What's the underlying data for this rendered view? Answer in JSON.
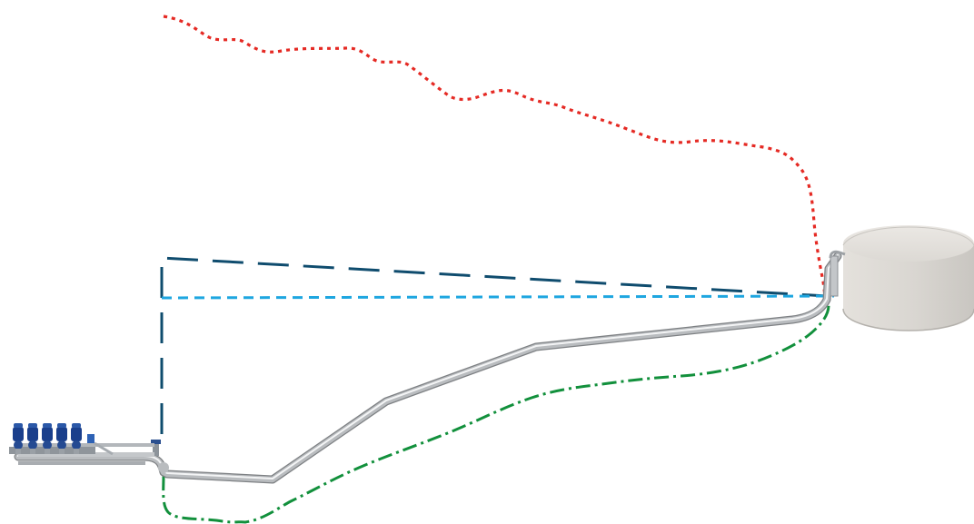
{
  "diagram": {
    "colors": {
      "red_line": "#e52a24",
      "dark_blue_line": "#0f4c6e",
      "light_blue_line": "#1ea6e0",
      "green_line": "#12903c",
      "pipe": "#b9bcbf",
      "pipe_highlight": "#f3f4f5",
      "pipe_shadow": "#7e8184",
      "tank_body": "#d8d5d0",
      "tank_top": "#e7e4e0",
      "pump_motor": "#1a3f8c",
      "pump_base": "#9aa0a6"
    },
    "components": [
      "pump-station",
      "pipeline",
      "valve",
      "storage-tank"
    ],
    "line_styles": {
      "red": "dotted",
      "dark_blue": "long-dash",
      "light_blue": "dashed",
      "green": "dash-dot"
    }
  }
}
